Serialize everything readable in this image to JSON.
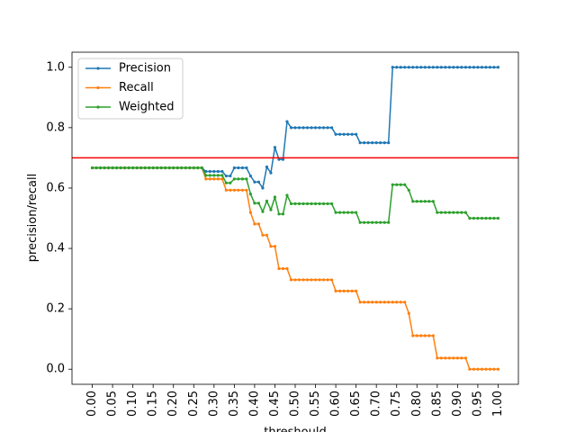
{
  "chart_data": {
    "type": "line",
    "xlabel": "threshould",
    "ylabel": "precision/recall",
    "xlim": [
      -0.05,
      1.05
    ],
    "ylim": [
      -0.05,
      1.05
    ],
    "x_ticks": [
      "0.00",
      "0.05",
      "0.10",
      "0.15",
      "0.20",
      "0.25",
      "0.30",
      "0.35",
      "0.40",
      "0.45",
      "0.50",
      "0.55",
      "0.60",
      "0.65",
      "0.70",
      "0.75",
      "0.80",
      "0.85",
      "0.90",
      "0.95",
      "1.00"
    ],
    "y_ticks": [
      "0.0",
      "0.2",
      "0.4",
      "0.6",
      "0.8",
      "1.0"
    ],
    "hline": {
      "y": 0.7,
      "color": "#ff0000"
    },
    "legend_position": "top-left",
    "series": [
      {
        "name": "Precision",
        "color": "#1f77b4",
        "x": [
          0.0,
          0.01,
          0.02,
          0.03,
          0.04,
          0.05,
          0.06,
          0.07,
          0.08,
          0.09,
          0.1,
          0.11,
          0.12,
          0.13,
          0.14,
          0.15,
          0.16,
          0.17,
          0.18,
          0.19,
          0.2,
          0.21,
          0.22,
          0.23,
          0.24,
          0.25,
          0.26,
          0.27,
          0.28,
          0.29,
          0.3,
          0.31,
          0.32,
          0.33,
          0.34,
          0.35,
          0.36,
          0.37,
          0.38,
          0.39,
          0.4,
          0.41,
          0.42,
          0.43,
          0.44,
          0.45,
          0.46,
          0.47,
          0.48,
          0.49,
          0.5,
          0.51,
          0.52,
          0.53,
          0.54,
          0.55,
          0.56,
          0.57,
          0.58,
          0.59,
          0.6,
          0.61,
          0.62,
          0.63,
          0.64,
          0.65,
          0.66,
          0.67,
          0.68,
          0.69,
          0.7,
          0.71,
          0.72,
          0.73,
          0.74,
          0.75,
          0.76,
          0.77,
          0.78,
          0.79,
          0.8,
          0.81,
          0.82,
          0.83,
          0.84,
          0.85,
          0.86,
          0.87,
          0.88,
          0.89,
          0.9,
          0.91,
          0.92,
          0.93,
          0.94,
          0.95,
          0.96,
          0.97,
          0.98,
          0.99,
          1.0
        ],
        "y": [
          0.667,
          0.667,
          0.667,
          0.667,
          0.667,
          0.667,
          0.667,
          0.667,
          0.667,
          0.667,
          0.667,
          0.667,
          0.667,
          0.667,
          0.667,
          0.667,
          0.667,
          0.667,
          0.667,
          0.667,
          0.667,
          0.667,
          0.667,
          0.667,
          0.667,
          0.667,
          0.667,
          0.667,
          0.655,
          0.655,
          0.655,
          0.655,
          0.655,
          0.64,
          0.64,
          0.667,
          0.667,
          0.667,
          0.667,
          0.64,
          0.62,
          0.62,
          0.6,
          0.67,
          0.65,
          0.735,
          0.695,
          0.695,
          0.82,
          0.8,
          0.8,
          0.8,
          0.8,
          0.8,
          0.8,
          0.8,
          0.8,
          0.8,
          0.8,
          0.8,
          0.778,
          0.778,
          0.778,
          0.778,
          0.778,
          0.778,
          0.75,
          0.75,
          0.75,
          0.75,
          0.75,
          0.75,
          0.75,
          0.75,
          1.0,
          1.0,
          1.0,
          1.0,
          1.0,
          1.0,
          1.0,
          1.0,
          1.0,
          1.0,
          1.0,
          1.0,
          1.0,
          1.0,
          1.0,
          1.0,
          1.0,
          1.0,
          1.0,
          1.0,
          1.0,
          1.0,
          1.0,
          1.0,
          1.0,
          1.0,
          1.0
        ]
      },
      {
        "name": "Recall",
        "color": "#ff7f0e",
        "x": [
          0.0,
          0.01,
          0.02,
          0.03,
          0.04,
          0.05,
          0.06,
          0.07,
          0.08,
          0.09,
          0.1,
          0.11,
          0.12,
          0.13,
          0.14,
          0.15,
          0.16,
          0.17,
          0.18,
          0.19,
          0.2,
          0.21,
          0.22,
          0.23,
          0.24,
          0.25,
          0.26,
          0.27,
          0.28,
          0.29,
          0.3,
          0.31,
          0.32,
          0.33,
          0.34,
          0.35,
          0.36,
          0.37,
          0.38,
          0.39,
          0.4,
          0.41,
          0.42,
          0.43,
          0.44,
          0.45,
          0.46,
          0.47,
          0.48,
          0.49,
          0.5,
          0.51,
          0.52,
          0.53,
          0.54,
          0.55,
          0.56,
          0.57,
          0.58,
          0.59,
          0.6,
          0.61,
          0.62,
          0.63,
          0.64,
          0.65,
          0.66,
          0.67,
          0.68,
          0.69,
          0.7,
          0.71,
          0.72,
          0.73,
          0.74,
          0.75,
          0.76,
          0.77,
          0.78,
          0.79,
          0.8,
          0.81,
          0.82,
          0.83,
          0.84,
          0.85,
          0.86,
          0.87,
          0.88,
          0.89,
          0.9,
          0.91,
          0.92,
          0.93,
          0.94,
          0.95,
          0.96,
          0.97,
          0.98,
          0.99,
          1.0
        ],
        "y": [
          0.667,
          0.667,
          0.667,
          0.667,
          0.667,
          0.667,
          0.667,
          0.667,
          0.667,
          0.667,
          0.667,
          0.667,
          0.667,
          0.667,
          0.667,
          0.667,
          0.667,
          0.667,
          0.667,
          0.667,
          0.667,
          0.667,
          0.667,
          0.667,
          0.667,
          0.667,
          0.667,
          0.667,
          0.63,
          0.63,
          0.63,
          0.63,
          0.63,
          0.593,
          0.593,
          0.593,
          0.593,
          0.593,
          0.593,
          0.519,
          0.481,
          0.481,
          0.444,
          0.444,
          0.407,
          0.407,
          0.333,
          0.333,
          0.333,
          0.296,
          0.296,
          0.296,
          0.296,
          0.296,
          0.296,
          0.296,
          0.296,
          0.296,
          0.296,
          0.296,
          0.259,
          0.259,
          0.259,
          0.259,
          0.259,
          0.259,
          0.222,
          0.222,
          0.222,
          0.222,
          0.222,
          0.222,
          0.222,
          0.222,
          0.222,
          0.222,
          0.222,
          0.222,
          0.185,
          0.111,
          0.111,
          0.111,
          0.111,
          0.111,
          0.111,
          0.037,
          0.037,
          0.037,
          0.037,
          0.037,
          0.037,
          0.037,
          0.037,
          0.0,
          0.0,
          0.0,
          0.0,
          0.0,
          0.0,
          0.0,
          0.0
        ]
      },
      {
        "name": "Weighted",
        "color": "#2ca02c",
        "x": [
          0.0,
          0.01,
          0.02,
          0.03,
          0.04,
          0.05,
          0.06,
          0.07,
          0.08,
          0.09,
          0.1,
          0.11,
          0.12,
          0.13,
          0.14,
          0.15,
          0.16,
          0.17,
          0.18,
          0.19,
          0.2,
          0.21,
          0.22,
          0.23,
          0.24,
          0.25,
          0.26,
          0.27,
          0.28,
          0.29,
          0.3,
          0.31,
          0.32,
          0.33,
          0.34,
          0.35,
          0.36,
          0.37,
          0.38,
          0.39,
          0.4,
          0.41,
          0.42,
          0.43,
          0.44,
          0.45,
          0.46,
          0.47,
          0.48,
          0.49,
          0.5,
          0.51,
          0.52,
          0.53,
          0.54,
          0.55,
          0.56,
          0.57,
          0.58,
          0.59,
          0.6,
          0.61,
          0.62,
          0.63,
          0.64,
          0.65,
          0.66,
          0.67,
          0.68,
          0.69,
          0.7,
          0.71,
          0.72,
          0.73,
          0.74,
          0.75,
          0.76,
          0.77,
          0.78,
          0.79,
          0.8,
          0.81,
          0.82,
          0.83,
          0.84,
          0.85,
          0.86,
          0.87,
          0.88,
          0.89,
          0.9,
          0.91,
          0.92,
          0.93,
          0.94,
          0.95,
          0.96,
          0.97,
          0.98,
          0.99,
          1.0
        ],
        "y": [
          0.667,
          0.667,
          0.667,
          0.667,
          0.667,
          0.667,
          0.667,
          0.667,
          0.667,
          0.667,
          0.667,
          0.667,
          0.667,
          0.667,
          0.667,
          0.667,
          0.667,
          0.667,
          0.667,
          0.667,
          0.667,
          0.667,
          0.667,
          0.667,
          0.667,
          0.667,
          0.667,
          0.667,
          0.642,
          0.642,
          0.642,
          0.642,
          0.642,
          0.617,
          0.617,
          0.63,
          0.63,
          0.63,
          0.63,
          0.58,
          0.55,
          0.55,
          0.522,
          0.557,
          0.528,
          0.57,
          0.514,
          0.514,
          0.576,
          0.548,
          0.548,
          0.548,
          0.548,
          0.548,
          0.548,
          0.548,
          0.548,
          0.548,
          0.548,
          0.548,
          0.519,
          0.519,
          0.519,
          0.519,
          0.519,
          0.519,
          0.486,
          0.486,
          0.486,
          0.486,
          0.486,
          0.486,
          0.486,
          0.486,
          0.611,
          0.611,
          0.611,
          0.611,
          0.593,
          0.556,
          0.556,
          0.556,
          0.556,
          0.556,
          0.556,
          0.519,
          0.519,
          0.519,
          0.519,
          0.519,
          0.519,
          0.519,
          0.519,
          0.5,
          0.5,
          0.5,
          0.5,
          0.5,
          0.5,
          0.5,
          0.5
        ]
      }
    ]
  }
}
